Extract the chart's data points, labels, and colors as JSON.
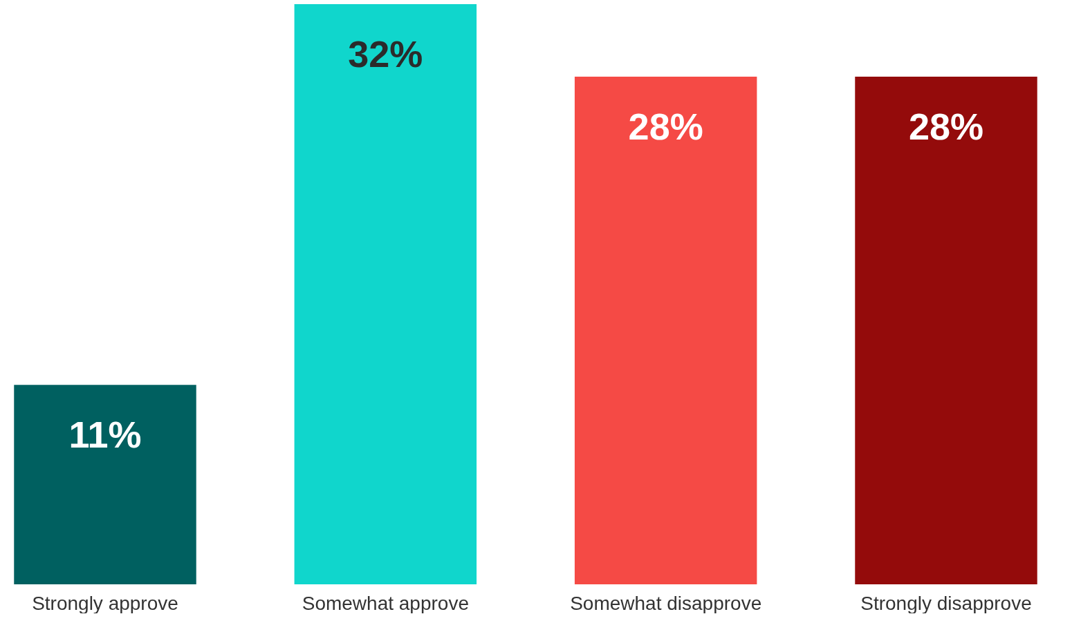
{
  "chart_data": {
    "type": "bar",
    "categories": [
      "Strongly approve",
      "Somewhat approve",
      "Somewhat disapprove",
      "Strongly disapprove"
    ],
    "values": [
      11,
      32,
      28,
      28
    ],
    "colors": [
      "#006060",
      "#10d6cc",
      "#f54a45",
      "#940b0b"
    ],
    "value_labels": [
      "11%",
      "32%",
      "28%",
      "28%"
    ],
    "tick_labels": "x",
    "grid": false
  }
}
